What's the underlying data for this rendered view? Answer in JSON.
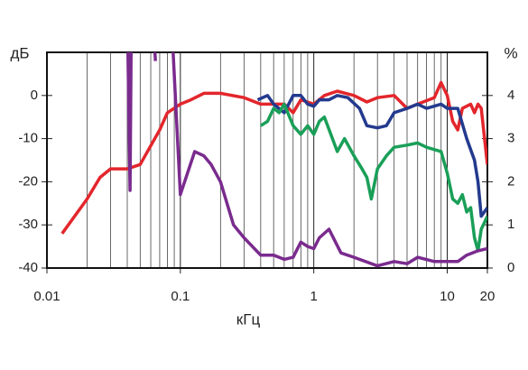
{
  "chart_data": {
    "type": "line",
    "x_label": "кГц",
    "y_label": "дБ",
    "y2_label": "%",
    "xscale": "log",
    "xlim": [
      0.01,
      20
    ],
    "xticks": [
      0.01,
      0.1,
      1,
      10,
      20
    ],
    "ylim": [
      -40,
      10
    ],
    "yticks": [
      -40,
      -30,
      -20,
      -10,
      0
    ],
    "y2lim": [
      0,
      5
    ],
    "y2ticks": [
      0,
      1,
      2,
      3,
      4
    ],
    "grid": true,
    "series": [
      {
        "name": "red",
        "color": "#e3262c",
        "x": [
          0.013,
          0.02,
          0.025,
          0.03,
          0.04,
          0.05,
          0.07,
          0.08,
          0.1,
          0.12,
          0.15,
          0.2,
          0.3,
          0.4,
          0.6,
          0.7,
          0.8,
          1,
          1.2,
          1.5,
          2,
          2.5,
          3,
          4,
          5,
          6,
          8,
          9,
          10,
          11,
          12,
          13,
          15,
          16,
          17,
          18,
          20
        ],
        "values": [
          -32,
          -24,
          -19,
          -17,
          -17,
          -16,
          -8,
          -4,
          -2,
          -1,
          0.5,
          0.5,
          -0.5,
          -2,
          -2,
          -4,
          -1,
          -2,
          0,
          1,
          0,
          -1.5,
          -0.5,
          0,
          -3,
          -2,
          -0.5,
          3,
          0,
          -6,
          -8,
          -3,
          -2,
          -4,
          -2,
          -3,
          -16
        ]
      },
      {
        "name": "blue",
        "color": "#233a8e",
        "x": [
          0.38,
          0.45,
          0.5,
          0.6,
          0.7,
          0.8,
          0.9,
          1,
          1.1,
          1.3,
          1.5,
          1.8,
          2.2,
          2.5,
          3,
          3.5,
          4,
          5,
          6,
          7,
          9,
          10,
          12,
          14,
          16,
          17,
          18,
          20
        ],
        "values": [
          -1,
          0,
          -2,
          -4,
          0,
          0,
          -2,
          -2.5,
          -1,
          -1,
          0,
          -0.5,
          -3,
          -7,
          -7.5,
          -7,
          -4,
          -3,
          -2,
          -3,
          -2,
          -3,
          -3,
          -10,
          -15,
          -20,
          -28,
          -26
        ]
      },
      {
        "name": "green",
        "color": "#1a9f58",
        "x": [
          0.4,
          0.45,
          0.5,
          0.55,
          0.6,
          0.7,
          0.8,
          0.9,
          1,
          1.1,
          1.2,
          1.5,
          1.7,
          2,
          2.3,
          2.5,
          2.7,
          3,
          3.5,
          4,
          5,
          6,
          7,
          9,
          10,
          11,
          12,
          13,
          14,
          15,
          16,
          17,
          18,
          20
        ],
        "values": [
          -7,
          -6,
          -3,
          -4,
          -2,
          -7,
          -9,
          -7,
          -9,
          -6,
          -5,
          -13,
          -10,
          -14,
          -17,
          -19,
          -24,
          -17,
          -14,
          -12,
          -11.5,
          -11,
          -12,
          -13,
          -18,
          -24,
          -25,
          -23,
          -27,
          -26,
          -33,
          -36,
          -31,
          -28
        ]
      },
      {
        "name": "purple",
        "color": "#7a2b8e",
        "axis": "y2",
        "x": [
          0.04,
          0.042,
          0.043,
          0.05,
          0.062,
          0.065,
          0.07,
          0.085,
          0.1,
          0.128,
          0.15,
          0.17,
          0.2,
          0.25,
          0.3,
          0.4,
          0.5,
          0.6,
          0.7,
          0.8,
          0.9,
          1,
          1.1,
          1.3,
          1.6,
          2,
          3,
          4,
          5,
          6,
          8,
          10,
          12,
          14,
          17,
          20
        ],
        "values": [
          6,
          1.8,
          6,
          null,
          6,
          4.8,
          null,
          6,
          1.7,
          2.7,
          2.6,
          2.4,
          2.0,
          1.0,
          0.7,
          0.3,
          0.3,
          0.2,
          0.25,
          0.6,
          0.5,
          0.45,
          0.7,
          0.9,
          0.35,
          0.25,
          0.05,
          0.15,
          0.1,
          0.25,
          0.15,
          0.15,
          0.15,
          0.3,
          0.4,
          0.45
        ]
      }
    ]
  }
}
